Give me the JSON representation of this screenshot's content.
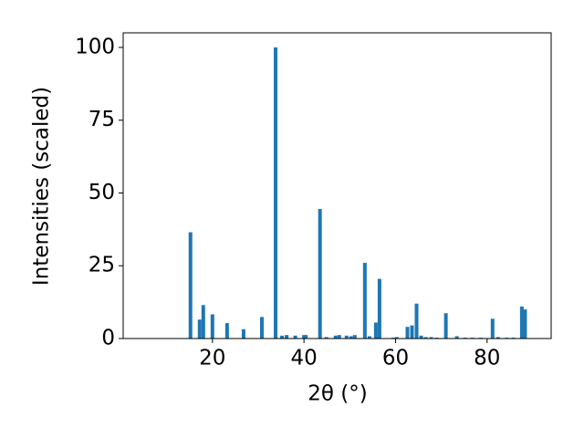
{
  "chart_data": {
    "type": "bar",
    "x_label": "2θ (°)",
    "y_label": "Intensities (scaled)",
    "x": [
      15.2,
      17.2,
      18.0,
      20.0,
      23.2,
      26.8,
      30.8,
      33.8,
      35.2,
      36.2,
      38.1,
      40.0,
      40.4,
      43.5,
      44.9,
      46.9,
      47.7,
      49.3,
      50.3,
      51.1,
      53.3,
      54.3,
      55.7,
      56.5,
      59.5,
      60.3,
      62.6,
      63.6,
      64.6,
      65.6,
      66.6,
      67.8,
      69.0,
      71.0,
      73.4,
      75.2,
      76.8,
      78.6,
      81.2,
      82.4,
      84.3,
      85.8,
      87.6,
      88.3
    ],
    "values": [
      36.5,
      6.5,
      11.5,
      8.3,
      5.3,
      3.2,
      7.4,
      100,
      1,
      1.2,
      1,
      1.2,
      1.2,
      44.5,
      0.5,
      1,
      1.2,
      1,
      0.8,
      1.2,
      26,
      0.8,
      5.5,
      20.5,
      0.3,
      0.5,
      4,
      4.5,
      12,
      1,
      0.5,
      0.5,
      0.3,
      8.7,
      0.8,
      0.3,
      0.3,
      0.3,
      6.8,
      0.5,
      0.3,
      0.3,
      11,
      10
    ],
    "color": "#1f77b4",
    "xlim": [
      0.5,
      94
    ],
    "xticks": [
      20,
      40,
      60,
      80
    ],
    "ylim": [
      0,
      105
    ],
    "yticks": [
      0,
      25,
      50,
      75,
      100
    ]
  }
}
